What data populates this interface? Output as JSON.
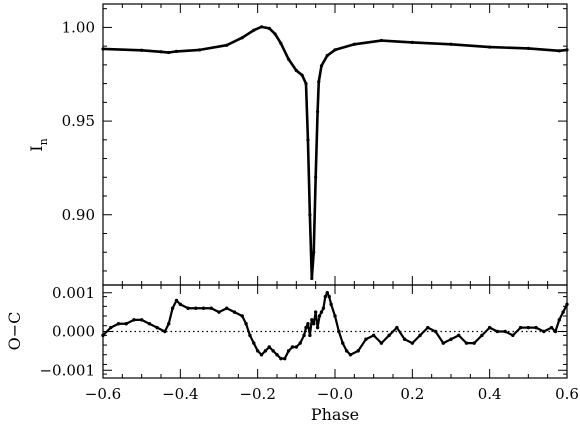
{
  "chart_data": [
    {
      "type": "line",
      "panel": "top",
      "ylabel": "I",
      "ylabel_sub": "n",
      "xlim": [
        -0.6,
        0.6
      ],
      "ylim": [
        0.8625,
        1.0125
      ],
      "yticks": [
        0.9,
        0.95,
        1.0
      ],
      "ytick_labels": [
        "0.90",
        "0.95",
        "1.00"
      ],
      "x": [
        -0.6,
        -0.5,
        -0.45,
        -0.43,
        -0.41,
        -0.35,
        -0.28,
        -0.24,
        -0.21,
        -0.19,
        -0.17,
        -0.155,
        -0.14,
        -0.12,
        -0.1,
        -0.085,
        -0.075,
        -0.07,
        -0.065,
        -0.06,
        -0.055,
        -0.05,
        -0.045,
        -0.042,
        -0.035,
        -0.02,
        0.0,
        0.05,
        0.12,
        0.2,
        0.3,
        0.4,
        0.5,
        0.58,
        0.6
      ],
      "values": [
        0.9885,
        0.9878,
        0.987,
        0.9866,
        0.9872,
        0.988,
        0.9905,
        0.9945,
        0.9985,
        1.0003,
        0.9995,
        0.9965,
        0.9915,
        0.983,
        0.977,
        0.9745,
        0.97,
        0.94,
        0.9,
        0.866,
        0.88,
        0.92,
        0.955,
        0.971,
        0.9795,
        0.985,
        0.988,
        0.991,
        0.993,
        0.992,
        0.991,
        0.9895,
        0.9888,
        0.9875,
        0.988
      ]
    },
    {
      "type": "scatter",
      "panel": "bottom",
      "xlabel": "Phase",
      "ylabel": "O−C",
      "xlim": [
        -0.6,
        0.6
      ],
      "ylim": [
        -0.0012,
        0.0012
      ],
      "xticks": [
        -0.6,
        -0.4,
        -0.2,
        0.0,
        0.2,
        0.4,
        0.6
      ],
      "xtick_labels": [
        "−0.6",
        "−0.4",
        "−0.2",
        "−0.0",
        "0.2",
        "0.4",
        "0.6"
      ],
      "yticks": [
        -0.001,
        0.0,
        0.001
      ],
      "ytick_labels": [
        "−0.001",
        "0.000",
        "0.001"
      ],
      "reference_line": 0.0,
      "x": [
        -0.6,
        -0.58,
        -0.56,
        -0.54,
        -0.52,
        -0.5,
        -0.48,
        -0.46,
        -0.44,
        -0.43,
        -0.42,
        -0.41,
        -0.4,
        -0.38,
        -0.36,
        -0.34,
        -0.32,
        -0.3,
        -0.28,
        -0.26,
        -0.24,
        -0.23,
        -0.22,
        -0.21,
        -0.2,
        -0.19,
        -0.18,
        -0.17,
        -0.16,
        -0.15,
        -0.14,
        -0.13,
        -0.12,
        -0.11,
        -0.1,
        -0.09,
        -0.08,
        -0.075,
        -0.07,
        -0.065,
        -0.06,
        -0.055,
        -0.05,
        -0.045,
        -0.04,
        -0.035,
        -0.03,
        -0.025,
        -0.02,
        -0.015,
        -0.01,
        0.0,
        0.01,
        0.02,
        0.03,
        0.04,
        0.06,
        0.08,
        0.1,
        0.12,
        0.14,
        0.16,
        0.18,
        0.2,
        0.22,
        0.24,
        0.26,
        0.28,
        0.3,
        0.32,
        0.34,
        0.36,
        0.38,
        0.4,
        0.42,
        0.44,
        0.46,
        0.48,
        0.5,
        0.52,
        0.54,
        0.56,
        0.57,
        0.58,
        0.59,
        0.6
      ],
      "values": [
        -0.0001,
        0.0001,
        0.0002,
        0.0002,
        0.0003,
        0.0003,
        0.0002,
        0.0001,
        0.0,
        0.0002,
        0.0006,
        0.0008,
        0.0007,
        0.0006,
        0.0006,
        0.0006,
        0.0006,
        0.0005,
        0.0006,
        0.0005,
        0.0004,
        0.0002,
        -0.0001,
        -0.0003,
        -0.0005,
        -0.0006,
        -0.0005,
        -0.0004,
        -0.0005,
        -0.0006,
        -0.0007,
        -0.0007,
        -0.0005,
        -0.0004,
        -0.0004,
        -0.0003,
        -0.0001,
        0.0001,
        0.0002,
        -0.0001,
        0.0003,
        0.0002,
        0.0005,
        0.0001,
        0.0004,
        0.0005,
        0.0006,
        0.0009,
        0.001,
        0.0009,
        0.0007,
        0.0004,
        0.0,
        -0.0003,
        -0.0005,
        -0.0006,
        -0.0005,
        -0.0002,
        -0.0001,
        -0.0003,
        -0.0001,
        0.0001,
        -0.0002,
        -0.0003,
        -0.0001,
        0.0001,
        0.0,
        -0.0003,
        -0.0002,
        -0.0001,
        -0.0003,
        -0.0003,
        -0.0001,
        0.0001,
        0.0,
        0.0,
        -0.0001,
        0.0001,
        0.0001,
        0.0001,
        0.0,
        0.0001,
        0.0,
        0.0003,
        0.0005,
        0.0007
      ]
    }
  ]
}
